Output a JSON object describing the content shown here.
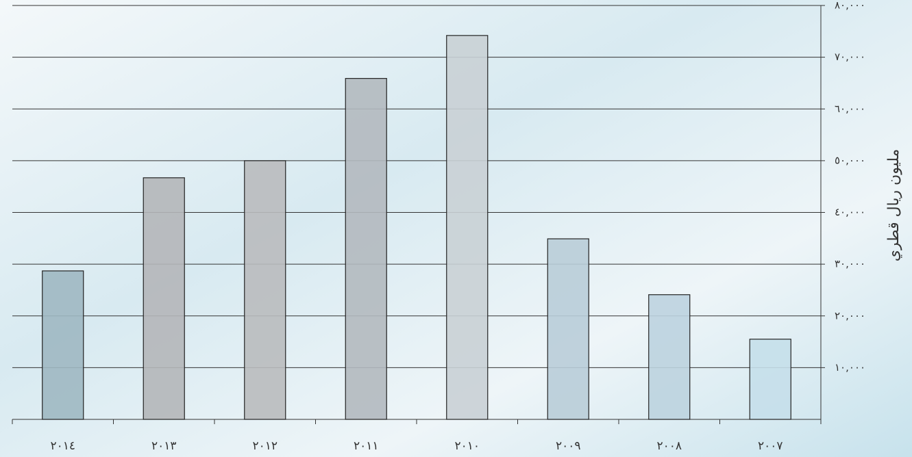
{
  "chart_data": {
    "type": "bar",
    "y_axis_label": "مليون ريال قطري",
    "categories": [
      "٢٠١٤",
      "٢٠١٣",
      "٢٠١٢",
      "٢٠١١",
      "٢٠١٠",
      "٢٠٠٩",
      "٢٠٠٨",
      "٢٠٠٧"
    ],
    "values": [
      28700,
      46700,
      50000,
      65900,
      74200,
      34900,
      24100,
      15500
    ],
    "colors": [
      "#9fb8c2",
      "#b4b6b9",
      "#b9bbbe",
      "#b3b9bf",
      "#c9d0d5",
      "#b9cdd8",
      "#bcd3df",
      "#c5dfea"
    ],
    "ylim": [
      0,
      80000
    ],
    "yticks": [
      {
        "value": 10000,
        "label": "١٠,٠٠٠"
      },
      {
        "value": 20000,
        "label": "٢٠,٠٠٠"
      },
      {
        "value": 30000,
        "label": "٣٠,٠٠٠"
      },
      {
        "value": 40000,
        "label": "٤٠,٠٠٠"
      },
      {
        "value": 50000,
        "label": "٥٠,٠٠٠"
      },
      {
        "value": 60000,
        "label": "٦٠,٠٠٠"
      },
      {
        "value": 70000,
        "label": "٧٠,٠٠٠"
      },
      {
        "value": 80000,
        "label": "٨٠,٠٠٠"
      }
    ],
    "grid": true
  }
}
